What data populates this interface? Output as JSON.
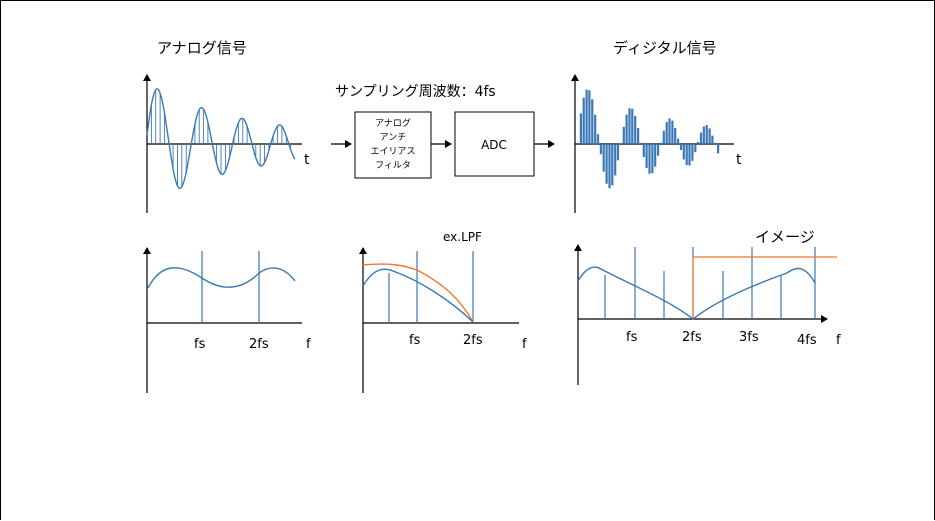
{
  "titles": {
    "analog": "アナログ信号",
    "digital": "ディジタル信号",
    "sampling": "サンプリング周波数：4fs",
    "image": "イメージ",
    "lpf": "ex.LPF"
  },
  "blocks": {
    "filter_lines": [
      "アナログ",
      "アンチ",
      "エイリアス",
      "フィルタ"
    ],
    "adc": "ADC"
  },
  "axis_labels": {
    "t1": "t",
    "t2": "t",
    "f1": "f",
    "f2": "f",
    "f3": "f"
  },
  "ticks": {
    "spec1": [
      "fs",
      "2fs"
    ],
    "spec2": [
      "fs",
      "2fs"
    ],
    "spec3": [
      "fs",
      "2fs",
      "3fs",
      "4fs"
    ]
  },
  "colors": {
    "signal_blue": "#3a78b6",
    "filter_orange": "#ea7a33",
    "axis": "#000000"
  }
}
